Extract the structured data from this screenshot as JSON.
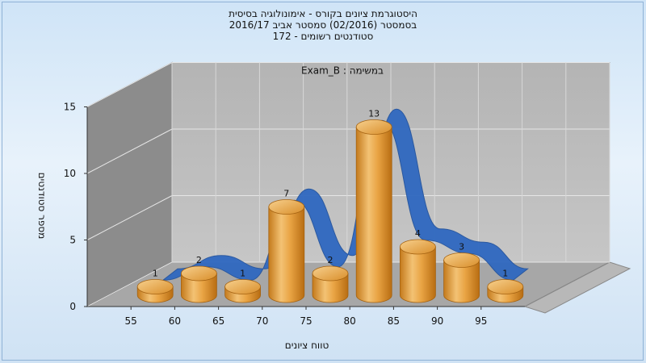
{
  "header": {
    "title_line1": "היסטוגרמת ציונים בקורס - אימונולוגיה בסיסית",
    "title_line2": "בסמסטר  (02/2016)  סמסטר אביב 2016/17",
    "title_line3": "סטודנטים רשומים - 172"
  },
  "chart_data": {
    "type": "bar",
    "subtitle": "Exam_B : במשימה",
    "xlabel": "טווח ציונים",
    "ylabel": "מספר סטודנטים",
    "categories": [
      "55",
      "60",
      "65",
      "70",
      "75",
      "80",
      "85",
      "90",
      "95"
    ],
    "x_ticks": [
      "55",
      "60",
      "65",
      "70",
      "75",
      "80",
      "85",
      "90",
      "95"
    ],
    "y_ticks": [
      "0",
      "5",
      "10",
      "15"
    ],
    "ylim": [
      0,
      15
    ],
    "series": [
      {
        "values": [
          1,
          2,
          1,
          7,
          2,
          13,
          4,
          3,
          1
        ]
      }
    ],
    "trend_line": {
      "shape": "ribbon",
      "color": "#2f68c0"
    },
    "bar_color": "#e6a84a",
    "grid": true,
    "legend": "none"
  }
}
